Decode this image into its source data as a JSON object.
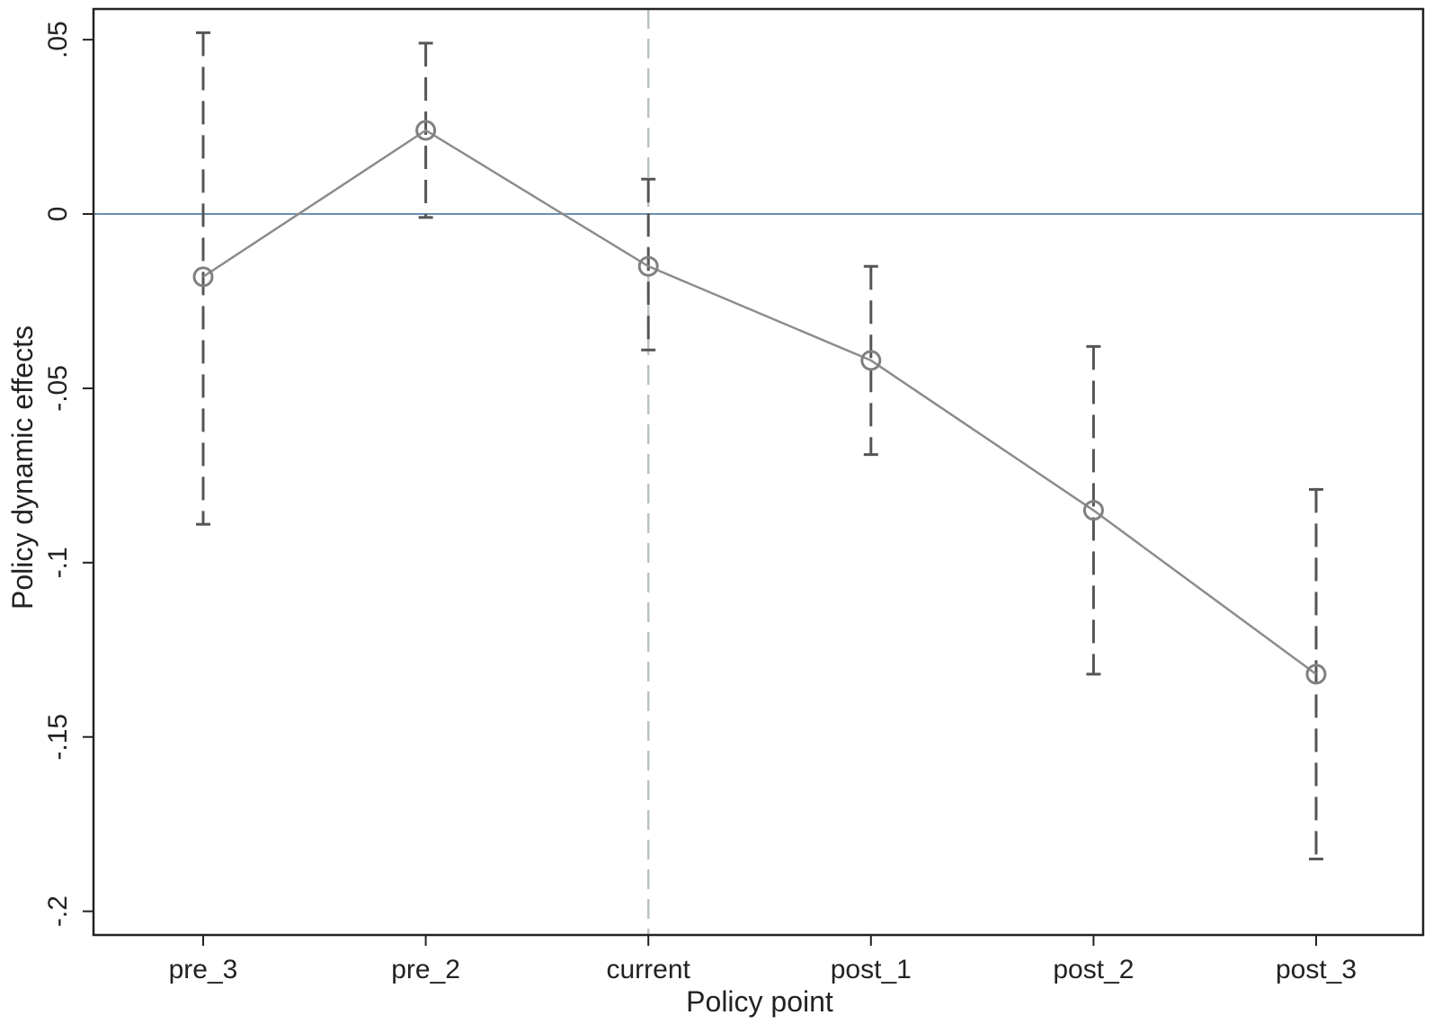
{
  "chart_data": {
    "type": "line",
    "xlabel": "Policy point",
    "ylabel": "Policy dynamic effects",
    "categories": [
      "pre_3",
      "pre_2",
      "current",
      "post_1",
      "post_2",
      "post_3"
    ],
    "series": [
      {
        "values": [
          -0.018,
          0.024,
          -0.015,
          -0.042,
          -0.085,
          -0.132
        ],
        "ci_low": [
          -0.089,
          -0.001,
          -0.039,
          -0.069,
          -0.132,
          -0.185
        ],
        "ci_high": [
          0.052,
          0.049,
          0.01,
          -0.015,
          -0.038,
          -0.079
        ]
      }
    ],
    "ylim": [
      -0.2068,
      0.0588
    ],
    "yticks": [
      0.05,
      0,
      -0.05,
      -0.1,
      -0.15,
      -0.2
    ],
    "ytick_labels": [
      ".05",
      "0",
      "-.05",
      "-.1",
      "-.15",
      "-.2"
    ],
    "reference_lines": {
      "horizontal_y": 0,
      "vertical_category": "current"
    },
    "grid": false,
    "legend": "none",
    "colors": {
      "line": "#8c8c8c",
      "marker": "#808080",
      "ci": "#555555",
      "zero_line": "#6a8fb0",
      "vline": "#b8c4bf",
      "frame": "#222222"
    }
  }
}
